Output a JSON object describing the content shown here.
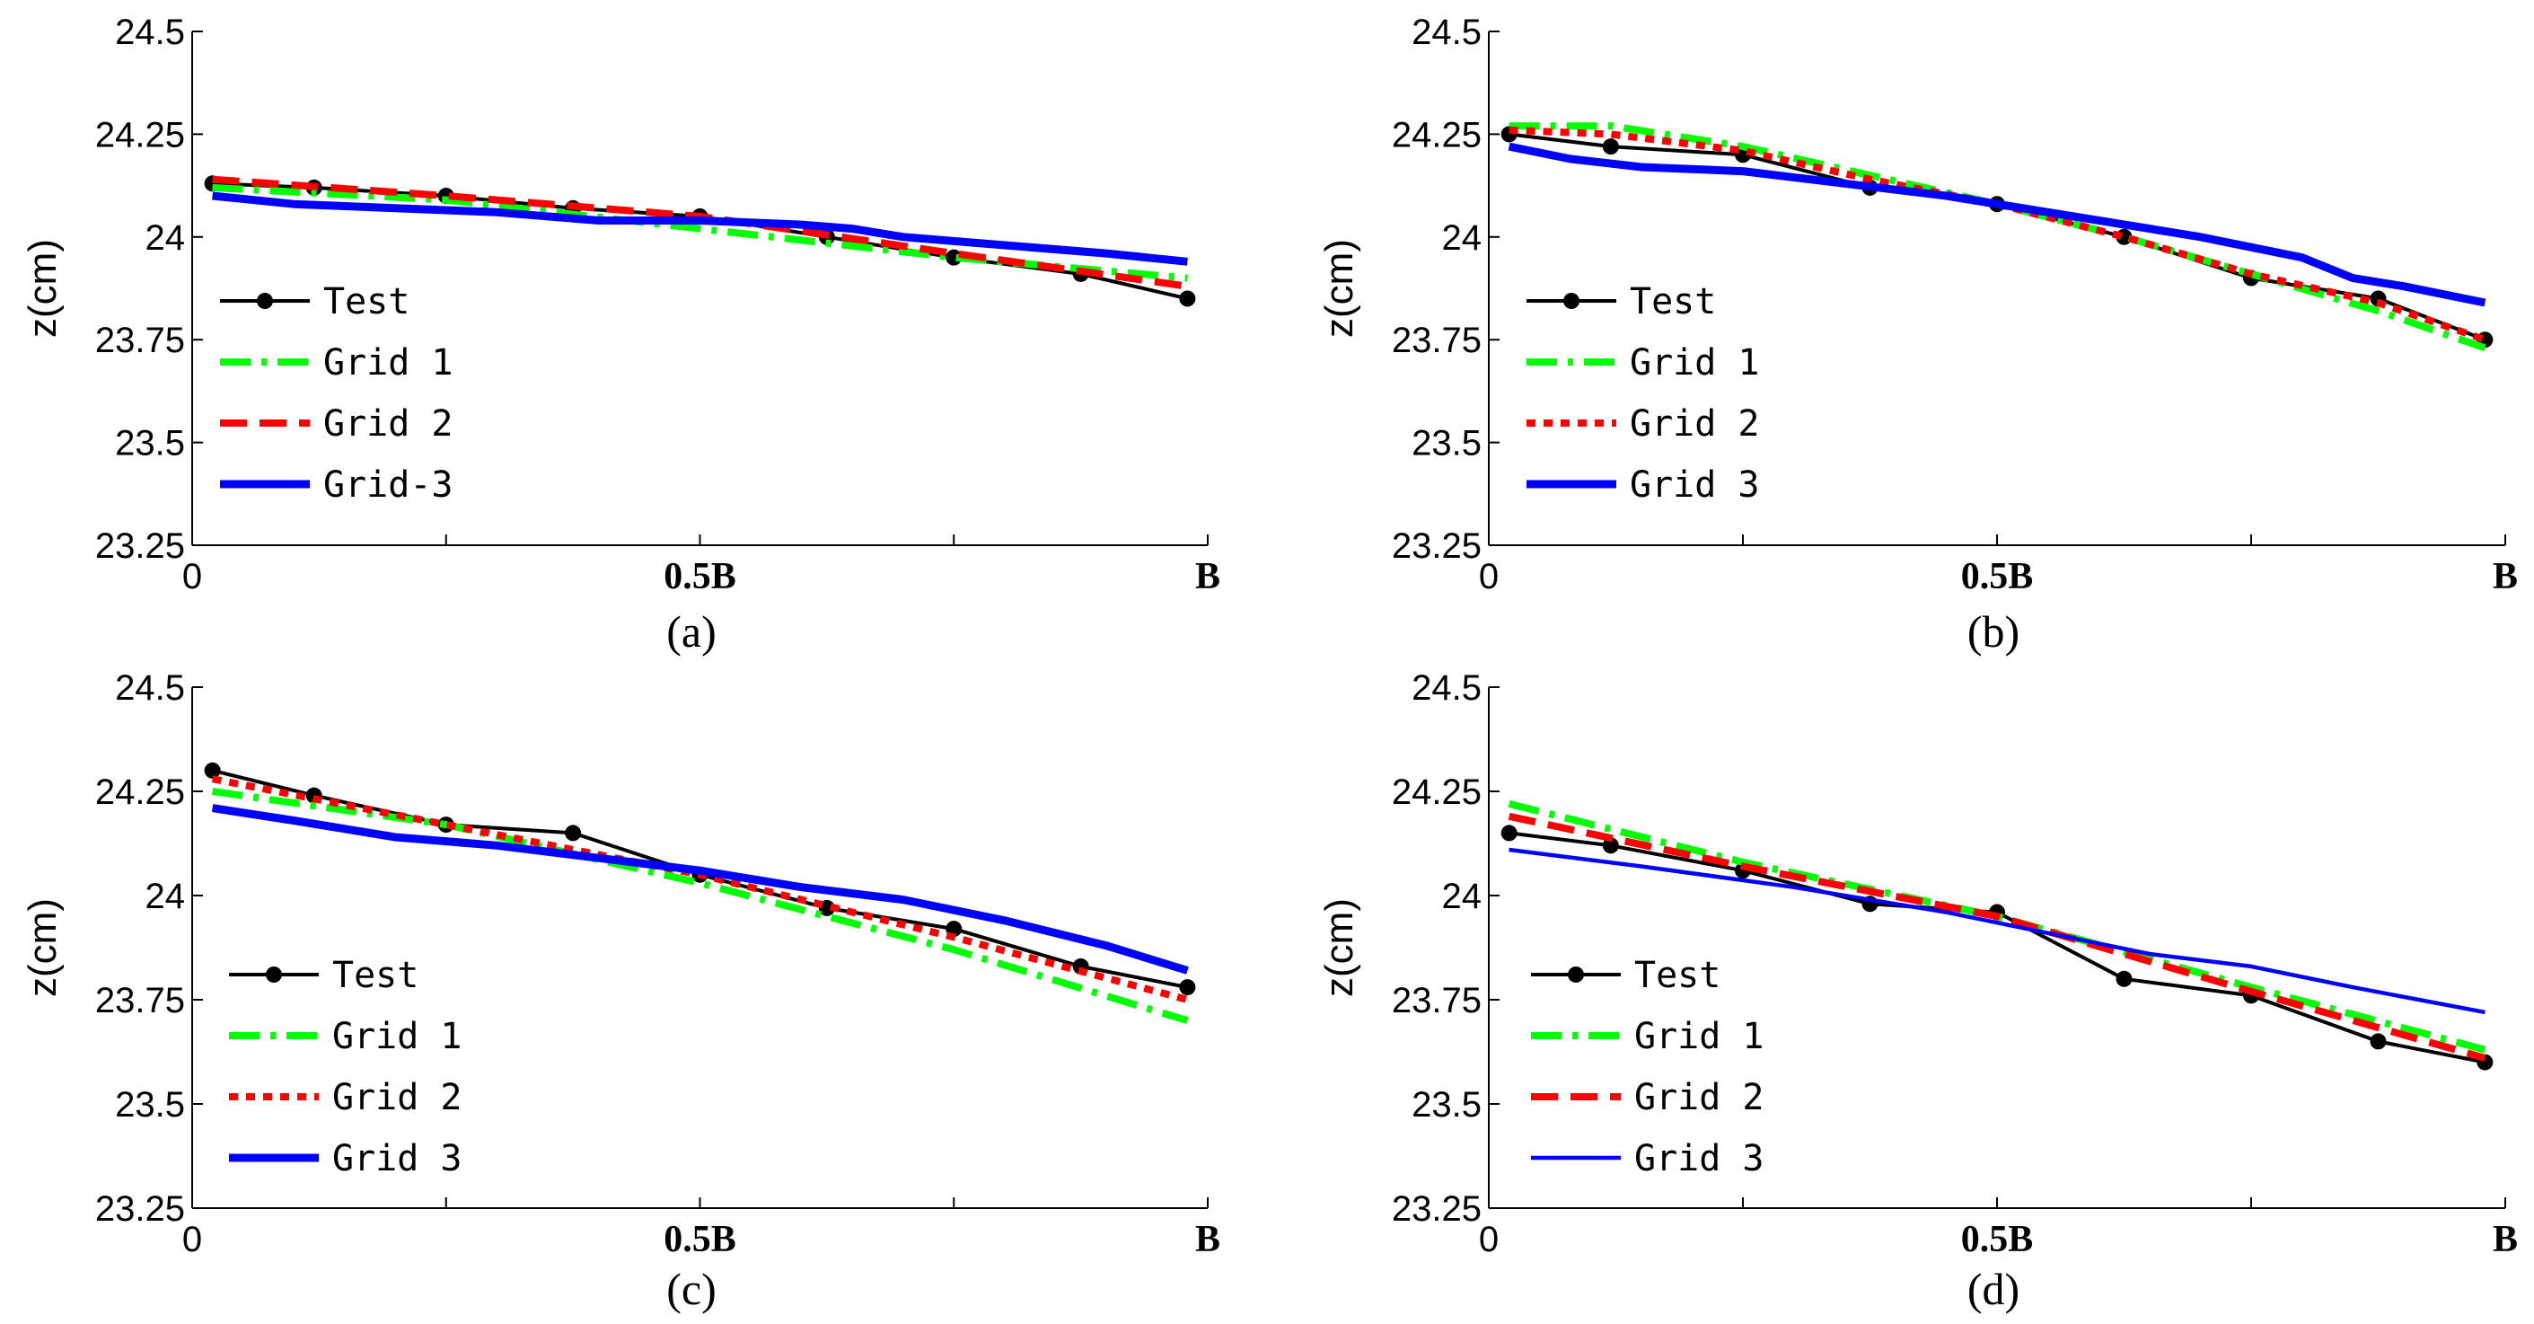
{
  "chart_data": [
    {
      "type": "line",
      "panel_label": "(a)",
      "ylabel": "z(cm)",
      "ylim": [
        23.25,
        24.5
      ],
      "yticks": [
        24.5,
        24.25,
        24,
        23.75,
        23.5,
        23.25
      ],
      "ytick_labels": [
        "24.5",
        "24.25",
        "24",
        "23.75",
        "23.5",
        "23.25"
      ],
      "xlim": [
        0,
        1
      ],
      "xticks": [
        0,
        0.25,
        0.5,
        0.75,
        1
      ],
      "xtick_labels": [
        "0",
        "",
        "0.5B",
        "",
        "B"
      ],
      "legend": [
        "Test",
        "Grid 1",
        "Grid 2",
        "Grid 3"
      ],
      "legend_texts": [
        "Test",
        "Grid 1",
        "Grid 2",
        "Grid-3"
      ],
      "series": [
        {
          "name": "Test",
          "color": "#000000",
          "style": "solid-marker",
          "x": [
            0.02,
            0.12,
            0.25,
            0.375,
            0.5,
            0.625,
            0.75,
            0.875,
            0.98
          ],
          "y": [
            24.13,
            24.12,
            24.1,
            24.07,
            24.05,
            24.0,
            23.95,
            23.91,
            23.85
          ]
        },
        {
          "name": "Grid 1",
          "color": "#00ff00",
          "style": "dashdot",
          "x": [
            0.02,
            0.25,
            0.5,
            0.75,
            0.98
          ],
          "y": [
            24.12,
            24.09,
            24.02,
            23.95,
            23.9
          ]
        },
        {
          "name": "Grid 2",
          "color": "#ff0000",
          "style": "dashed",
          "x": [
            0.02,
            0.25,
            0.5,
            0.75,
            0.98
          ],
          "y": [
            24.14,
            24.1,
            24.05,
            23.96,
            23.88
          ]
        },
        {
          "name": "Grid 3",
          "color": "#0000ff",
          "style": "thick",
          "x": [
            0.02,
            0.1,
            0.2,
            0.3,
            0.4,
            0.5,
            0.6,
            0.65,
            0.7,
            0.8,
            0.9,
            0.98
          ],
          "y": [
            24.1,
            24.08,
            24.07,
            24.06,
            24.04,
            24.04,
            24.03,
            24.02,
            24.0,
            23.98,
            23.96,
            23.94
          ]
        }
      ]
    },
    {
      "type": "line",
      "panel_label": "(b)",
      "ylabel": "z(cm)",
      "ylim": [
        23.25,
        24.5
      ],
      "yticks": [
        24.5,
        24.25,
        24,
        23.75,
        23.5,
        23.25
      ],
      "ytick_labels": [
        "24.5",
        "24.25",
        "24",
        "23.75",
        "23.5",
        "23.25"
      ],
      "xlim": [
        0,
        1
      ],
      "xticks": [
        0,
        0.25,
        0.5,
        0.75,
        1
      ],
      "xtick_labels": [
        "0",
        "",
        "0.5B",
        "",
        "B"
      ],
      "legend": [
        "Test",
        "Grid 1",
        "Grid 2",
        "Grid 3"
      ],
      "legend_texts": [
        "Test",
        "Grid 1",
        "Grid 2",
        "Grid 3"
      ],
      "series": [
        {
          "name": "Test",
          "color": "#000000",
          "style": "solid-marker",
          "x": [
            0.02,
            0.12,
            0.25,
            0.375,
            0.5,
            0.625,
            0.75,
            0.875,
            0.98
          ],
          "y": [
            24.25,
            24.22,
            24.2,
            24.12,
            24.08,
            24.0,
            23.9,
            23.85,
            23.75
          ]
        },
        {
          "name": "Grid 1",
          "color": "#00ff00",
          "style": "dashdot",
          "x": [
            0.02,
            0.12,
            0.25,
            0.375,
            0.5,
            0.625,
            0.75,
            0.875,
            0.98
          ],
          "y": [
            24.27,
            24.27,
            24.22,
            24.15,
            24.08,
            24.0,
            23.91,
            23.82,
            23.73
          ]
        },
        {
          "name": "Grid 2",
          "color": "#ff0000",
          "style": "dotted",
          "x": [
            0.02,
            0.12,
            0.25,
            0.375,
            0.5,
            0.625,
            0.75,
            0.875,
            0.98
          ],
          "y": [
            24.26,
            24.25,
            24.21,
            24.14,
            24.08,
            24.0,
            23.91,
            23.84,
            23.75
          ]
        },
        {
          "name": "Grid 3",
          "color": "#0000ff",
          "style": "thick",
          "x": [
            0.02,
            0.08,
            0.15,
            0.25,
            0.35,
            0.45,
            0.55,
            0.65,
            0.7,
            0.8,
            0.85,
            0.9,
            0.98
          ],
          "y": [
            24.22,
            24.19,
            24.17,
            24.16,
            24.13,
            24.1,
            24.06,
            24.02,
            24.0,
            23.95,
            23.9,
            23.88,
            23.84
          ]
        }
      ]
    },
    {
      "type": "line",
      "panel_label": "(c)",
      "ylabel": "z(cm)",
      "ylim": [
        23.25,
        24.5
      ],
      "yticks": [
        24.5,
        24.25,
        24,
        23.75,
        23.5,
        23.25
      ],
      "ytick_labels": [
        "24.5",
        "24.25",
        "24",
        "23.75",
        "23.5",
        "23.25"
      ],
      "xlim": [
        0,
        1
      ],
      "xticks": [
        0,
        0.25,
        0.5,
        0.75,
        1
      ],
      "xtick_labels": [
        "0",
        "",
        "0.5B",
        "",
        "B"
      ],
      "legend": [
        "Test",
        "Grid 1",
        "Grid 2",
        "Grid 3"
      ],
      "legend_texts": [
        "Test",
        "Grid 1",
        "Grid 2",
        "Grid 3"
      ],
      "series": [
        {
          "name": "Test",
          "color": "#000000",
          "style": "solid-marker",
          "x": [
            0.02,
            0.12,
            0.25,
            0.375,
            0.5,
            0.625,
            0.75,
            0.875,
            0.98
          ],
          "y": [
            24.3,
            24.24,
            24.17,
            24.15,
            24.05,
            23.97,
            23.92,
            23.83,
            23.78
          ]
        },
        {
          "name": "Grid 1",
          "color": "#00ff00",
          "style": "dashdot",
          "x": [
            0.02,
            0.25,
            0.5,
            0.75,
            0.98
          ],
          "y": [
            24.25,
            24.17,
            24.03,
            23.87,
            23.7
          ]
        },
        {
          "name": "Grid 2",
          "color": "#ff0000",
          "style": "dotted",
          "x": [
            0.02,
            0.25,
            0.5,
            0.75,
            0.98
          ],
          "y": [
            24.28,
            24.17,
            24.05,
            23.9,
            23.75
          ]
        },
        {
          "name": "Grid 3",
          "color": "#0000ff",
          "style": "thick",
          "x": [
            0.02,
            0.1,
            0.2,
            0.3,
            0.4,
            0.5,
            0.6,
            0.7,
            0.8,
            0.9,
            0.98
          ],
          "y": [
            24.21,
            24.18,
            24.14,
            24.12,
            24.09,
            24.06,
            24.02,
            23.99,
            23.94,
            23.88,
            23.82
          ]
        }
      ]
    },
    {
      "type": "line",
      "panel_label": "(d)",
      "ylabel": "z(cm)",
      "ylim": [
        23.25,
        24.5
      ],
      "yticks": [
        24.5,
        24.25,
        24,
        23.75,
        23.5,
        23.25
      ],
      "ytick_labels": [
        "24.5",
        "24.25",
        "24",
        "23.75",
        "23.5",
        "23.25"
      ],
      "xlim": [
        0,
        1
      ],
      "xticks": [
        0,
        0.25,
        0.5,
        0.75,
        1
      ],
      "xtick_labels": [
        "0",
        "",
        "0.5B",
        "",
        "B"
      ],
      "legend": [
        "Test",
        "Grid 1",
        "Grid 2",
        "Grid 3"
      ],
      "legend_texts": [
        "Test",
        "Grid 1",
        "Grid 2",
        "Grid 3"
      ],
      "series": [
        {
          "name": "Test",
          "color": "#000000",
          "style": "solid-marker",
          "x": [
            0.02,
            0.12,
            0.25,
            0.375,
            0.5,
            0.625,
            0.75,
            0.875,
            0.98
          ],
          "y": [
            24.15,
            24.12,
            24.06,
            23.98,
            23.96,
            23.8,
            23.76,
            23.65,
            23.6
          ]
        },
        {
          "name": "Grid 1",
          "color": "#00ff00",
          "style": "dashdot",
          "x": [
            0.02,
            0.25,
            0.5,
            0.75,
            0.98
          ],
          "y": [
            24.22,
            24.08,
            23.95,
            23.78,
            23.63
          ]
        },
        {
          "name": "Grid 2",
          "color": "#ff0000",
          "style": "dashed",
          "x": [
            0.02,
            0.25,
            0.5,
            0.75,
            0.98
          ],
          "y": [
            24.19,
            24.07,
            23.95,
            23.77,
            23.61
          ]
        },
        {
          "name": "Grid 3",
          "color": "#0000ff",
          "style": "thin",
          "x": [
            0.02,
            0.15,
            0.3,
            0.45,
            0.55,
            0.65,
            0.75,
            0.85,
            0.98
          ],
          "y": [
            24.11,
            24.07,
            24.02,
            23.96,
            23.91,
            23.86,
            23.83,
            23.78,
            23.72
          ]
        }
      ]
    }
  ]
}
